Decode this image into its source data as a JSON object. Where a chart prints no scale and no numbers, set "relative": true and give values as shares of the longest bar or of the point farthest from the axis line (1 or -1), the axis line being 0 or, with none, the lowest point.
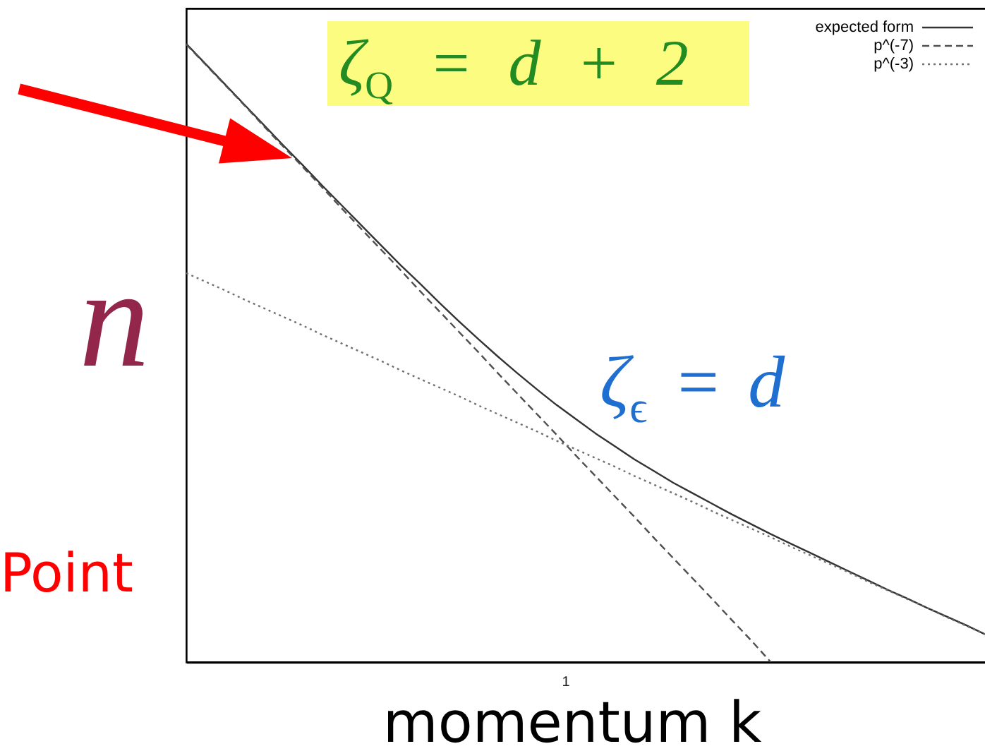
{
  "chart_data": {
    "type": "line",
    "xlabel": "momentum k",
    "ylabel": "n",
    "annotations": [
      "ζ$_{Q}$ = d + 2",
      "ζ$_{ϵ}$ = d",
      "Point",
      "1"
    ],
    "relative": true,
    "legend": "top right",
    "categories": [
      null,
      null,
      null,
      null,
      null,
      null,
      null,
      null,
      null,
      null,
      null,
      null,
      null,
      null,
      null,
      null,
      null,
      null,
      null,
      null,
      null,
      null,
      null,
      null,
      null,
      null,
      null,
      null,
      null,
      null,
      null,
      null,
      null,
      null,
      null,
      null,
      null,
      null,
      null,
      null,
      null,
      null
    ],
    "series": [
      {
        "name": "expected form",
        "color": "#333333",
        "line_style": "solid",
        "values": [
          1,
          0.967,
          0.934,
          0.901,
          0.868,
          0.835,
          0.803,
          0.77,
          0.738,
          0.706,
          0.674,
          0.642,
          0.612,
          0.581,
          0.551,
          0.522,
          0.494,
          0.467,
          0.441,
          0.416,
          0.393,
          0.37,
          0.349,
          0.328,
          0.309,
          0.29,
          0.273,
          0.256,
          0.239,
          0.223,
          0.207,
          0.192,
          0.177,
          0.162,
          0.147,
          0.132,
          0.117,
          0.103,
          0.088,
          0.074,
          0.06,
          0.045
        ]
      },
      {
        "name": "p^(-7)",
        "color": "#505050",
        "line_style": "dashed",
        "values": [
          0.999,
          0.966,
          0.933,
          0.9,
          0.866,
          0.833,
          0.8,
          0.767,
          0.733,
          0.7,
          0.667,
          0.634,
          0.6,
          0.567,
          0.534,
          0.501,
          0.467,
          0.434,
          0.401,
          0.368,
          0.334,
          0.301,
          0.268,
          0.235,
          0.201,
          0.168,
          0.135,
          0.102,
          0.068,
          0.035,
          0,
          null,
          null,
          null,
          null,
          null,
          null,
          null,
          null,
          null,
          null,
          null
        ]
      },
      {
        "name": "p^(-3)",
        "color": "#707070",
        "line_style": "dotted",
        "values": [
          0.629,
          0.615,
          0.601,
          0.586,
          0.572,
          0.558,
          0.544,
          0.529,
          0.515,
          0.501,
          0.487,
          0.472,
          0.458,
          0.444,
          0.43,
          0.415,
          0.401,
          0.387,
          0.373,
          0.358,
          0.344,
          0.33,
          0.316,
          0.301,
          0.287,
          0.273,
          0.259,
          0.244,
          0.23,
          0.216,
          0.202,
          0.187,
          0.173,
          0.159,
          0.145,
          0.13,
          0.116,
          0.102,
          0.088,
          0.073,
          0.059,
          0.045
        ]
      }
    ]
  }
}
